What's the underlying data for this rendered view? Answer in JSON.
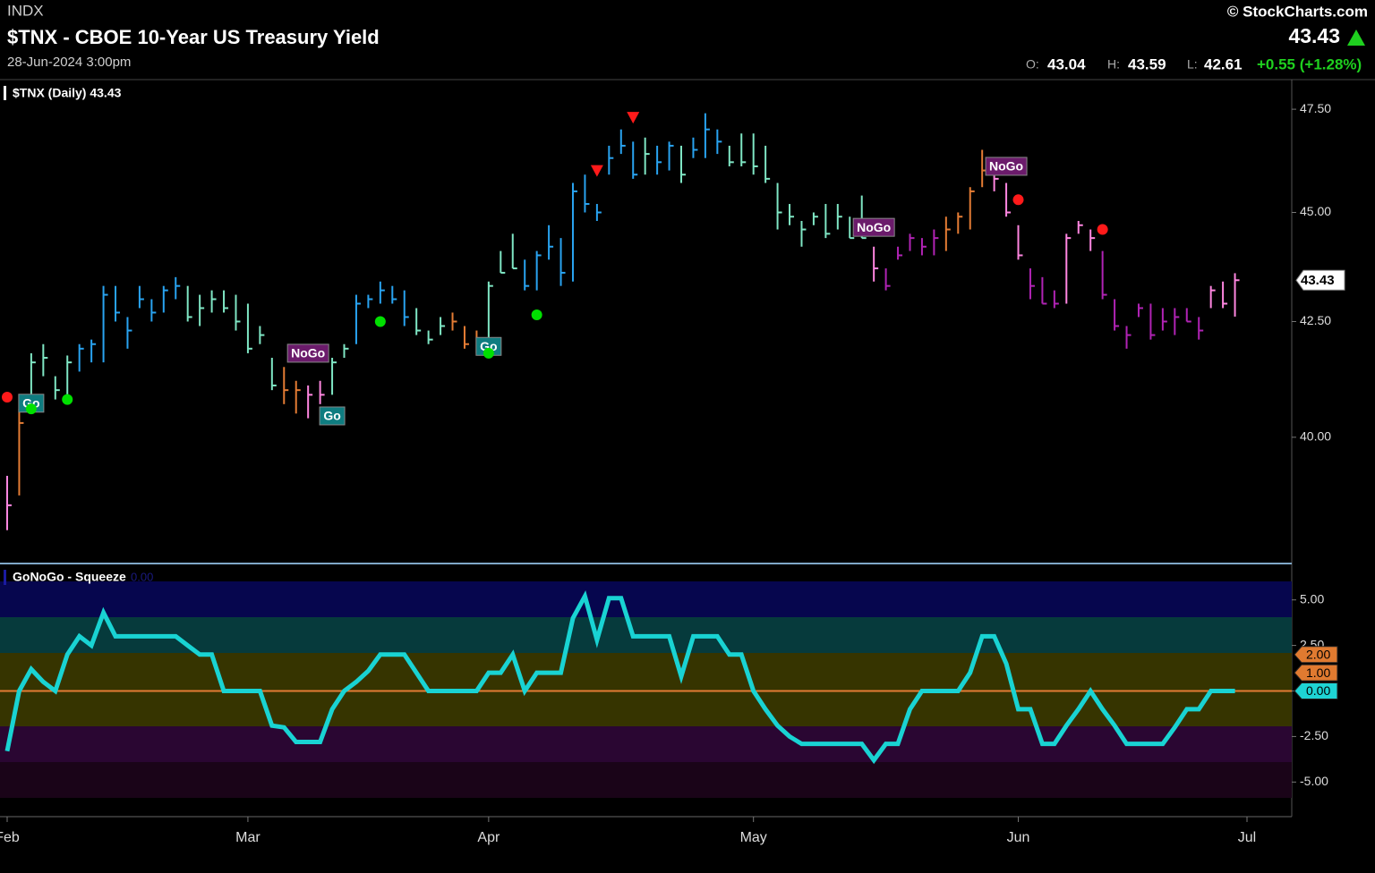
{
  "header": {
    "exchange": "INDX",
    "title": "$TNX - CBOE 10-Year US Treasury Yield",
    "timestamp": "28-Jun-2024 3:00pm",
    "copyright": "© StockCharts.com",
    "last": "43.43",
    "ohlc": [
      {
        "label": "O:",
        "value": "43.04"
      },
      {
        "label": "H:",
        "value": "43.59"
      },
      {
        "label": "L:",
        "value": "42.61"
      }
    ],
    "change": "+0.55 (+1.28%)"
  },
  "chart_data": {
    "type": "ohlc",
    "legend": "$TNX (Daily) 43.43",
    "log_scale": true,
    "grid": false,
    "categories": [
      "Feb",
      null,
      null,
      null,
      null,
      null,
      null,
      null,
      null,
      null,
      null,
      null,
      null,
      null,
      null,
      null,
      null,
      null,
      null,
      null,
      "Mar",
      null,
      null,
      null,
      null,
      null,
      null,
      null,
      null,
      null,
      null,
      null,
      null,
      null,
      null,
      null,
      null,
      null,
      null,
      null,
      "Apr",
      null,
      null,
      null,
      null,
      null,
      null,
      null,
      null,
      null,
      null,
      null,
      null,
      null,
      null,
      null,
      null,
      null,
      null,
      null,
      null,
      null,
      "May",
      null,
      null,
      null,
      null,
      null,
      null,
      null,
      null,
      null,
      null,
      null,
      null,
      null,
      null,
      null,
      null,
      null,
      null,
      null,
      null,
      null,
      "Jun",
      null,
      null,
      null,
      null,
      null,
      null,
      null,
      null,
      null,
      null,
      null,
      null,
      null,
      null,
      null,
      null,
      null,
      null,
      "Jul"
    ],
    "high": [
      39.2,
      40.6,
      41.8,
      42.0,
      41.3,
      41.75,
      42.0,
      42.1,
      43.3,
      43.3,
      42.6,
      43.3,
      43.0,
      43.3,
      43.5,
      43.3,
      43.1,
      43.2,
      43.2,
      43.1,
      42.9,
      42.4,
      41.7,
      41.5,
      41.2,
      41.1,
      41.2,
      41.7,
      42.0,
      43.1,
      43.1,
      43.4,
      43.3,
      43.2,
      42.8,
      42.3,
      42.6,
      42.7,
      42.4,
      42.3,
      43.4,
      44.1,
      44.5,
      43.9,
      44.1,
      44.7,
      44.4,
      45.7,
      45.9,
      45.2,
      46.6,
      47.0,
      46.7,
      46.8,
      46.6,
      46.7,
      46.6,
      46.8,
      47.4,
      47.0,
      46.6,
      46.9,
      46.9,
      46.6,
      45.7,
      45.2,
      44.8,
      45.0,
      45.2,
      45.2,
      44.9,
      45.4,
      44.2,
      43.7,
      44.2,
      44.5,
      44.4,
      44.6,
      44.9,
      45.0,
      45.6,
      46.5,
      46.1,
      45.7,
      44.7,
      43.7,
      43.5,
      43.2,
      44.5,
      44.8,
      44.6,
      44.1,
      43.0,
      42.4,
      42.9,
      42.9,
      42.8,
      42.8,
      42.8,
      42.6,
      43.3,
      43.4,
      43.59,
      null
    ],
    "low": [
      38.1,
      38.8,
      40.6,
      41.3,
      40.8,
      40.9,
      41.4,
      41.6,
      41.6,
      42.5,
      41.9,
      42.8,
      42.5,
      42.7,
      43.0,
      42.5,
      42.4,
      42.7,
      42.7,
      42.3,
      41.8,
      42.0,
      41.0,
      40.7,
      40.5,
      40.4,
      40.7,
      40.9,
      41.7,
      42.0,
      42.8,
      42.9,
      42.9,
      42.4,
      42.2,
      42.0,
      42.2,
      42.3,
      41.9,
      41.8,
      42.0,
      43.6,
      43.7,
      43.2,
      43.2,
      43.9,
      43.3,
      43.4,
      45.0,
      44.8,
      45.9,
      46.4,
      45.8,
      45.9,
      45.9,
      46.0,
      45.7,
      46.3,
      46.3,
      46.4,
      46.1,
      46.1,
      45.9,
      45.7,
      44.6,
      44.7,
      44.2,
      44.7,
      44.4,
      44.6,
      44.4,
      44.4,
      43.4,
      43.2,
      43.9,
      44.1,
      44.0,
      44.0,
      44.1,
      44.5,
      44.6,
      45.6,
      45.5,
      44.9,
      43.9,
      43.0,
      42.9,
      42.8,
      42.9,
      44.5,
      44.1,
      43.0,
      42.3,
      41.9,
      42.6,
      42.1,
      42.3,
      42.2,
      42.5,
      42.1,
      42.8,
      42.8,
      42.61,
      null
    ],
    "close": [
      38.6,
      40.3,
      41.6,
      41.7,
      41.0,
      41.6,
      41.9,
      42.0,
      43.1,
      42.7,
      42.3,
      43.0,
      42.7,
      43.2,
      43.3,
      42.6,
      42.8,
      43.0,
      42.8,
      42.5,
      41.9,
      42.2,
      41.1,
      41.0,
      41.0,
      40.9,
      40.9,
      41.6,
      41.9,
      42.9,
      43.0,
      43.2,
      43.0,
      42.6,
      42.3,
      42.1,
      42.4,
      42.5,
      42.0,
      42.1,
      43.3,
      43.6,
      43.7,
      43.3,
      44.0,
      44.2,
      43.6,
      45.5,
      45.2,
      45.0,
      46.3,
      46.6,
      45.9,
      46.4,
      46.2,
      46.6,
      45.9,
      46.5,
      47.0,
      46.7,
      46.2,
      46.2,
      46.1,
      45.8,
      45.0,
      44.9,
      44.6,
      44.9,
      44.5,
      44.9,
      44.4,
      44.4,
      43.7,
      43.3,
      44.0,
      44.4,
      44.2,
      44.4,
      44.6,
      44.9,
      45.5,
      46.0,
      45.8,
      45.0,
      44.0,
      43.3,
      42.9,
      42.9,
      44.4,
      44.7,
      44.4,
      43.1,
      42.4,
      42.2,
      42.8,
      42.2,
      42.5,
      42.6,
      42.5,
      42.3,
      43.2,
      42.9,
      43.43,
      null
    ],
    "bar_colors": [
      "#ff86e0",
      "#e47c34",
      "#7fe6c4",
      "#7fe6c4",
      "#7fe6c4",
      "#7fe6c4",
      "#29a3f0",
      "#29a3f0",
      "#29a3f0",
      "#29a3f0",
      "#29a3f0",
      "#29a3f0",
      "#29a3f0",
      "#29a3f0",
      "#29a3f0",
      "#7fe6c4",
      "#7fe6c4",
      "#7fe6c4",
      "#7fe6c4",
      "#7fe6c4",
      "#7fe6c4",
      "#7fe6c4",
      "#7fe6c4",
      "#e47c34",
      "#e47c34",
      "#ff86e0",
      "#ff86e0",
      "#7fe6c4",
      "#7fe6c4",
      "#29a3f0",
      "#29a3f0",
      "#29a3f0",
      "#29a3f0",
      "#29a3f0",
      "#7fe6c4",
      "#7fe6c4",
      "#7fe6c4",
      "#e47c34",
      "#e47c34",
      "#e47c34",
      "#7fe6c4",
      "#7fe6c4",
      "#7fe6c4",
      "#29a3f0",
      "#29a3f0",
      "#29a3f0",
      "#29a3f0",
      "#29a3f0",
      "#29a3f0",
      "#29a3f0",
      "#29a3f0",
      "#29a3f0",
      "#29a3f0",
      "#7fe6c4",
      "#29a3f0",
      "#29a3f0",
      "#7fe6c4",
      "#29a3f0",
      "#29a3f0",
      "#29a3f0",
      "#7fe6c4",
      "#7fe6c4",
      "#7fe6c4",
      "#7fe6c4",
      "#7fe6c4",
      "#7fe6c4",
      "#7fe6c4",
      "#7fe6c4",
      "#7fe6c4",
      "#7fe6c4",
      "#7fe6c4",
      "#7fe6c4",
      "#ff86e0",
      "#b023b4",
      "#b023b4",
      "#b023b4",
      "#b023b4",
      "#b023b4",
      "#e47c34",
      "#e47c34",
      "#e47c34",
      "#e47c34",
      "#ff86e0",
      "#ff86e0",
      "#ff86e0",
      "#b023b4",
      "#b023b4",
      "#b023b4",
      "#ff86e0",
      "#ff86e0",
      "#ff86e0",
      "#b023b4",
      "#b023b4",
      "#b023b4",
      "#b023b4",
      "#b023b4",
      "#b023b4",
      "#b023b4",
      "#b023b4",
      "#b023b4",
      "#ff86e0",
      "#ff86e0",
      "#ff86e0",
      null
    ],
    "ylim": [
      37.44,
      48.22
    ],
    "yticks": [
      {
        "value": 40,
        "label": "40.00"
      },
      {
        "value": 42.5,
        "label": "42.50"
      },
      {
        "value": 45,
        "label": "45.00"
      },
      {
        "value": 47.5,
        "label": "47.50"
      }
    ],
    "last_price": {
      "value": 43.43,
      "label": "43.43"
    },
    "annotations": [
      {
        "type": "label",
        "text": "Go",
        "bar": 2,
        "value": 40.72,
        "color": "#0f7c80"
      },
      {
        "type": "dot",
        "bar": 2,
        "value": 40.6,
        "color": "#00e000"
      },
      {
        "type": "dot",
        "bar": 5,
        "value": 40.8,
        "color": "#00e000"
      },
      {
        "type": "label",
        "text": "NoGo",
        "bar": 25,
        "value": 41.8,
        "color": "#6b1b6b"
      },
      {
        "type": "label",
        "text": "Go",
        "bar": 27,
        "value": 40.45,
        "color": "#0f7c80"
      },
      {
        "type": "dot",
        "bar": 31,
        "value": 42.5,
        "color": "#00e000"
      },
      {
        "type": "label",
        "text": "Go",
        "bar": 40,
        "value": 41.95,
        "color": "#0f7c80"
      },
      {
        "type": "dot",
        "bar": 40,
        "value": 41.8,
        "color": "#00e000"
      },
      {
        "type": "dot",
        "bar": 44,
        "value": 42.65,
        "color": "#00e000"
      },
      {
        "type": "triangle",
        "bar": 49,
        "value": 46.0,
        "color": "#ff1a1a"
      },
      {
        "type": "triangle",
        "bar": 52,
        "value": 47.3,
        "color": "#ff1a1a"
      },
      {
        "type": "label",
        "text": "NoGo",
        "bar": 72,
        "value": 44.65,
        "color": "#6b1b6b"
      },
      {
        "type": "label",
        "text": "NoGo",
        "bar": 83,
        "value": 46.1,
        "color": "#6b1b6b"
      },
      {
        "type": "dot",
        "bar": 0,
        "value": 40.85,
        "color": "#ff1a1a"
      },
      {
        "type": "dot",
        "bar": 84,
        "value": 45.3,
        "color": "#ff1a1a"
      },
      {
        "type": "dot",
        "bar": 91,
        "value": 44.6,
        "color": "#ff1a1a"
      }
    ],
    "oscillator": {
      "type": "line",
      "title": "GoNoGo - Squeeze",
      "value_label": "0.00",
      "color": "#19d3d3",
      "zero_color": "#e47c34",
      "values": [
        -3.3,
        0,
        1.2,
        0.5,
        0,
        2,
        3,
        2.5,
        4.3,
        3,
        3,
        3,
        3,
        3,
        3,
        2.5,
        2,
        2,
        0,
        0,
        0,
        0,
        -1.9,
        -2,
        -2.8,
        -2.8,
        -2.8,
        -1,
        0,
        0.5,
        1.1,
        2,
        2,
        2,
        1,
        0,
        0,
        0,
        0,
        0,
        1,
        1,
        2,
        0,
        1,
        1,
        1,
        4,
        5.2,
        2.8,
        5.1,
        5.1,
        3,
        3,
        3,
        3,
        0.8,
        3,
        3,
        3,
        2,
        2,
        0,
        -1,
        -1.9,
        -2.5,
        -2.9,
        -2.9,
        -2.9,
        -2.9,
        -2.9,
        -2.9,
        -3.8,
        -2.9,
        -2.9,
        -1,
        0,
        0,
        0,
        0,
        1,
        3,
        3,
        1.5,
        -1,
        -1,
        -2.9,
        -2.9,
        -1.9,
        -1,
        0,
        -1,
        -1.9,
        -2.9,
        -2.9,
        -2.9,
        -2.9,
        -2,
        -1,
        -1,
        0,
        0,
        0,
        null
      ],
      "ylim": [
        -6.9,
        6.9
      ],
      "yticks": [
        {
          "value": 5,
          "label": "5.00"
        },
        {
          "value": 2.5,
          "label": "2.50"
        },
        {
          "value": 0,
          "label": "0.00"
        },
        {
          "value": -2.5,
          "label": "-2.50"
        },
        {
          "value": -5,
          "label": "-5.00"
        }
      ],
      "badges": [
        {
          "value": 2,
          "label": "2.00",
          "color": "#e07a30"
        },
        {
          "value": 1,
          "label": "1.00",
          "color": "#e07a30"
        },
        {
          "value": 0,
          "label": "0.00",
          "color": "#1ed4d4"
        }
      ]
    }
  }
}
